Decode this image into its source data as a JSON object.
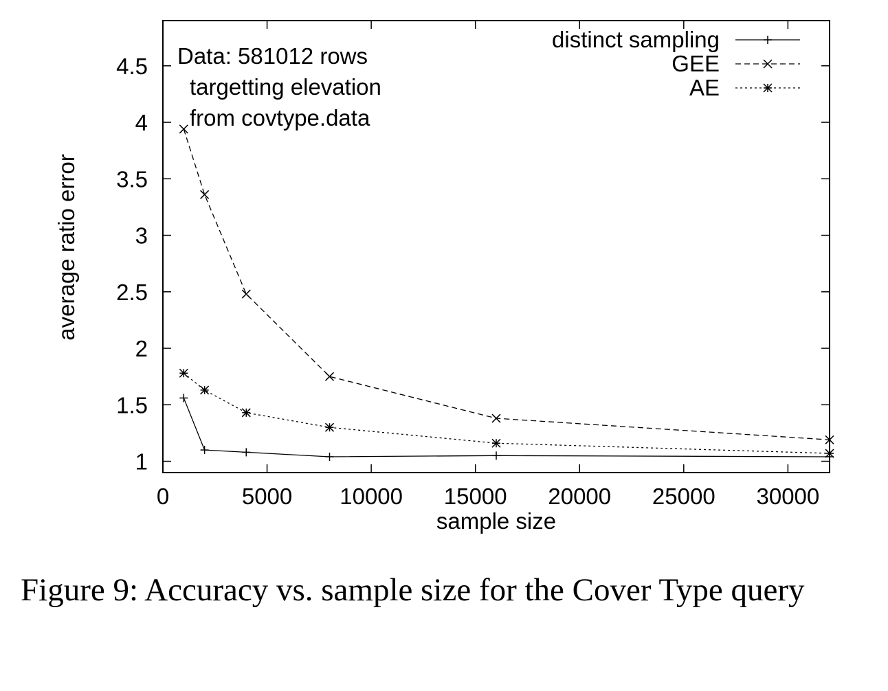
{
  "chart_data": {
    "type": "line",
    "xlabel": "sample size",
    "ylabel": "average ratio error",
    "xlim": [
      0,
      32000
    ],
    "ylim": [
      0.9,
      4.9
    ],
    "xticks": [
      0,
      5000,
      10000,
      15000,
      20000,
      25000,
      30000
    ],
    "yticks": [
      1,
      1.5,
      2,
      2.5,
      3,
      3.5,
      4,
      4.5
    ],
    "xtick_labels": [
      "0",
      "5000",
      "10000",
      "15000",
      "20000",
      "25000",
      "30000"
    ],
    "ytick_labels": [
      "1",
      "1.5",
      "2",
      "2.5",
      "3",
      "3.5",
      "4",
      "4.5"
    ],
    "grid": false,
    "legend_position": "top-right",
    "annotation_lines": [
      "Data: 581012 rows",
      "targetting elevation",
      "from covtype.data"
    ],
    "x": [
      1000,
      2000,
      4000,
      8000,
      16000,
      32000
    ],
    "series": [
      {
        "name": "distinct sampling",
        "marker": "plus",
        "line_style": "solid",
        "values": [
          1.56,
          1.1,
          1.08,
          1.04,
          1.05,
          1.04
        ]
      },
      {
        "name": "GEE",
        "marker": "cross",
        "line_style": "dashed",
        "values": [
          3.94,
          3.36,
          2.48,
          1.75,
          1.38,
          1.19
        ]
      },
      {
        "name": "AE",
        "marker": "star",
        "line_style": "dotted",
        "values": [
          1.78,
          1.63,
          1.43,
          1.3,
          1.16,
          1.07
        ]
      }
    ]
  },
  "caption": {
    "text": "Figure 9: Accuracy vs. sample size for the Cover Type query"
  }
}
